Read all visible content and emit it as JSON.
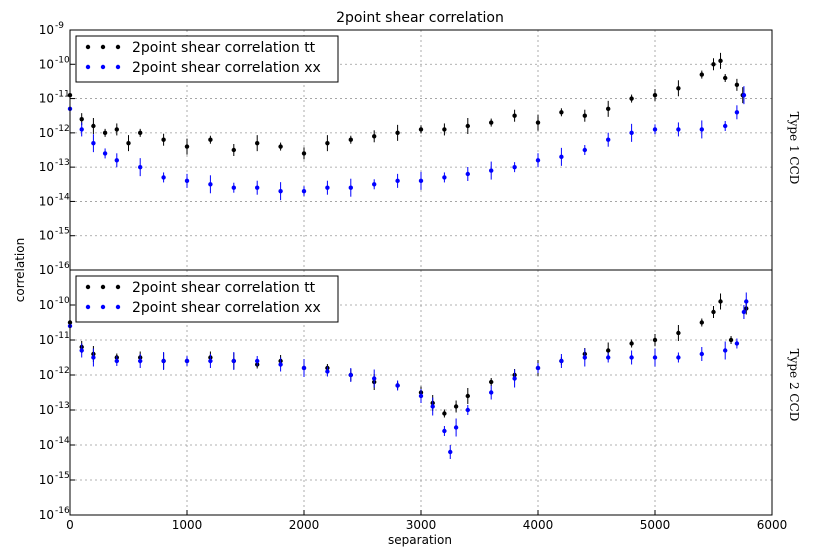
{
  "chart_data": {
    "type": "scatter",
    "title": "2point shear correlation",
    "xlabel": "separation",
    "ylabel": "correlation",
    "xlim": [
      0,
      6000
    ],
    "x_ticks": [
      "0",
      "1000",
      "2000",
      "3000",
      "4000",
      "5000",
      "6000"
    ],
    "y_scale": "log",
    "ylim_exponents": [
      -16,
      -9
    ],
    "y_tick_base": "10",
    "panels": [
      {
        "name": "top",
        "side_label": "Type 1 CCD",
        "y_tick_exponents": [
          -9,
          -10,
          -11,
          -12,
          -13,
          -14,
          -15,
          -16
        ],
        "legend": {
          "position": "top-left",
          "entries": [
            "2point shear correlation tt",
            "2point shear correlation xx"
          ]
        },
        "series": [
          {
            "name": "2point shear correlation tt",
            "color": "#000000",
            "points": [
              [
                0,
                -10.9
              ],
              [
                100,
                -11.6
              ],
              [
                200,
                -11.8
              ],
              [
                300,
                -12.0
              ],
              [
                400,
                -11.9
              ],
              [
                500,
                -12.3
              ],
              [
                600,
                -12.0
              ],
              [
                800,
                -12.2
              ],
              [
                1000,
                -12.4
              ],
              [
                1200,
                -12.2
              ],
              [
                1400,
                -12.5
              ],
              [
                1600,
                -12.3
              ],
              [
                1800,
                -12.4
              ],
              [
                2000,
                -12.6
              ],
              [
                2200,
                -12.3
              ],
              [
                2400,
                -12.2
              ],
              [
                2600,
                -12.1
              ],
              [
                2800,
                -12.0
              ],
              [
                3000,
                -11.9
              ],
              [
                3200,
                -11.9
              ],
              [
                3400,
                -11.8
              ],
              [
                3600,
                -11.7
              ],
              [
                3800,
                -11.5
              ],
              [
                4000,
                -11.7
              ],
              [
                4200,
                -11.4
              ],
              [
                4400,
                -11.5
              ],
              [
                4600,
                -11.3
              ],
              [
                4800,
                -11.0
              ],
              [
                5000,
                -10.9
              ],
              [
                5200,
                -10.7
              ],
              [
                5400,
                -10.3
              ],
              [
                5500,
                -10.0
              ],
              [
                5560,
                -9.9
              ],
              [
                5600,
                -10.4
              ],
              [
                5700,
                -10.6
              ],
              [
                5750,
                -10.9
              ]
            ]
          },
          {
            "name": "2point shear correlation xx",
            "color": "#0000ff",
            "points": [
              [
                0,
                -11.3
              ],
              [
                100,
                -11.9
              ],
              [
                200,
                -12.3
              ],
              [
                300,
                -12.6
              ],
              [
                400,
                -12.8
              ],
              [
                600,
                -13.0
              ],
              [
                800,
                -13.3
              ],
              [
                1000,
                -13.4
              ],
              [
                1200,
                -13.5
              ],
              [
                1400,
                -13.6
              ],
              [
                1600,
                -13.6
              ],
              [
                1800,
                -13.7
              ],
              [
                2000,
                -13.7
              ],
              [
                2200,
                -13.6
              ],
              [
                2400,
                -13.6
              ],
              [
                2600,
                -13.5
              ],
              [
                2800,
                -13.4
              ],
              [
                3000,
                -13.4
              ],
              [
                3200,
                -13.3
              ],
              [
                3400,
                -13.2
              ],
              [
                3600,
                -13.1
              ],
              [
                3800,
                -13.0
              ],
              [
                4000,
                -12.8
              ],
              [
                4200,
                -12.7
              ],
              [
                4400,
                -12.5
              ],
              [
                4600,
                -12.2
              ],
              [
                4800,
                -12.0
              ],
              [
                5000,
                -11.9
              ],
              [
                5200,
                -11.9
              ],
              [
                5400,
                -11.9
              ],
              [
                5600,
                -11.8
              ],
              [
                5700,
                -11.4
              ],
              [
                5760,
                -10.9
              ]
            ]
          }
        ]
      },
      {
        "name": "bottom",
        "side_label": "Type 2 CCD",
        "y_tick_exponents": [
          -10,
          -11,
          -12,
          -13,
          -14,
          -15,
          -16
        ],
        "legend": {
          "position": "top-left",
          "entries": [
            "2point shear correlation tt",
            "2point shear correlation xx"
          ]
        },
        "series": [
          {
            "name": "2point shear correlation tt",
            "color": "#000000",
            "points": [
              [
                0,
                -10.5
              ],
              [
                100,
                -11.2
              ],
              [
                200,
                -11.4
              ],
              [
                400,
                -11.5
              ],
              [
                600,
                -11.5
              ],
              [
                800,
                -11.6
              ],
              [
                1000,
                -11.6
              ],
              [
                1200,
                -11.5
              ],
              [
                1400,
                -11.6
              ],
              [
                1600,
                -11.7
              ],
              [
                1800,
                -11.6
              ],
              [
                2000,
                -11.8
              ],
              [
                2200,
                -11.8
              ],
              [
                2400,
                -12.0
              ],
              [
                2600,
                -12.2
              ],
              [
                2800,
                -12.3
              ],
              [
                3000,
                -12.5
              ],
              [
                3100,
                -12.8
              ],
              [
                3200,
                -13.1
              ],
              [
                3300,
                -12.9
              ],
              [
                3400,
                -12.6
              ],
              [
                3600,
                -12.2
              ],
              [
                3800,
                -12.0
              ],
              [
                4000,
                -11.8
              ],
              [
                4200,
                -11.6
              ],
              [
                4400,
                -11.4
              ],
              [
                4600,
                -11.3
              ],
              [
                4800,
                -11.1
              ],
              [
                5000,
                -11.0
              ],
              [
                5200,
                -10.8
              ],
              [
                5400,
                -10.5
              ],
              [
                5500,
                -10.2
              ],
              [
                5560,
                -9.9
              ],
              [
                5650,
                -11.0
              ],
              [
                5780,
                -10.1
              ]
            ]
          },
          {
            "name": "2point shear correlation xx",
            "color": "#0000ff",
            "points": [
              [
                0,
                -10.6
              ],
              [
                100,
                -11.3
              ],
              [
                200,
                -11.5
              ],
              [
                400,
                -11.6
              ],
              [
                600,
                -11.6
              ],
              [
                800,
                -11.6
              ],
              [
                1000,
                -11.6
              ],
              [
                1200,
                -11.6
              ],
              [
                1400,
                -11.6
              ],
              [
                1600,
                -11.6
              ],
              [
                1800,
                -11.7
              ],
              [
                2000,
                -11.8
              ],
              [
                2200,
                -11.9
              ],
              [
                2400,
                -12.0
              ],
              [
                2600,
                -12.1
              ],
              [
                2800,
                -12.3
              ],
              [
                3000,
                -12.6
              ],
              [
                3100,
                -12.9
              ],
              [
                3200,
                -13.6
              ],
              [
                3250,
                -14.2
              ],
              [
                3300,
                -13.5
              ],
              [
                3400,
                -13.0
              ],
              [
                3600,
                -12.5
              ],
              [
                3800,
                -12.1
              ],
              [
                4000,
                -11.8
              ],
              [
                4200,
                -11.6
              ],
              [
                4400,
                -11.5
              ],
              [
                4600,
                -11.5
              ],
              [
                4800,
                -11.5
              ],
              [
                5000,
                -11.5
              ],
              [
                5200,
                -11.5
              ],
              [
                5400,
                -11.4
              ],
              [
                5600,
                -11.3
              ],
              [
                5700,
                -11.1
              ],
              [
                5760,
                -10.2
              ],
              [
                5780,
                -9.9
              ]
            ]
          }
        ]
      }
    ]
  }
}
